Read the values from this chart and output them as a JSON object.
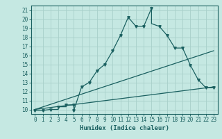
{
  "xlabel": "Humidex (Indice chaleur)",
  "xlim": [
    -0.5,
    23.5
  ],
  "ylim": [
    9.5,
    21.5
  ],
  "xticks": [
    0,
    1,
    2,
    3,
    4,
    5,
    6,
    7,
    8,
    9,
    10,
    11,
    12,
    13,
    14,
    15,
    16,
    17,
    18,
    19,
    20,
    21,
    22,
    23
  ],
  "yticks": [
    10,
    11,
    12,
    13,
    14,
    15,
    16,
    17,
    18,
    19,
    20,
    21
  ],
  "background_color": "#c5e8e2",
  "grid_color": "#a8d0ca",
  "line_color": "#1a6060",
  "main_line_x": [
    0,
    1,
    2,
    3,
    3,
    4,
    4,
    5,
    5,
    6,
    7,
    8,
    9,
    10,
    11,
    12,
    13,
    14,
    15,
    15,
    16,
    17,
    18,
    19,
    20,
    21,
    22,
    23
  ],
  "main_line_y": [
    9.9,
    9.9,
    10.0,
    10.0,
    10.3,
    10.3,
    10.5,
    10.5,
    9.9,
    12.5,
    13.0,
    14.3,
    15.0,
    16.5,
    18.2,
    20.2,
    19.2,
    19.2,
    21.2,
    19.5,
    19.2,
    18.2,
    16.8,
    16.8,
    14.9,
    13.3,
    12.4,
    12.4
  ],
  "diag_line1_x": [
    0,
    23
  ],
  "diag_line1_y": [
    10.0,
    16.5
  ],
  "diag_line2_x": [
    0,
    23
  ],
  "diag_line2_y": [
    10.0,
    12.5
  ],
  "marker_x": [
    0,
    1,
    2,
    3,
    4,
    5,
    5,
    6,
    7,
    8,
    9,
    10,
    11,
    12,
    13,
    14,
    15,
    16,
    17,
    18,
    19,
    20,
    21,
    22,
    23
  ],
  "marker_y": [
    9.9,
    9.9,
    10.0,
    10.3,
    10.5,
    10.5,
    9.9,
    12.5,
    13.0,
    14.3,
    15.0,
    16.5,
    18.2,
    20.2,
    19.2,
    19.2,
    21.2,
    19.2,
    18.2,
    16.8,
    16.8,
    14.9,
    13.3,
    12.4,
    12.4
  ]
}
